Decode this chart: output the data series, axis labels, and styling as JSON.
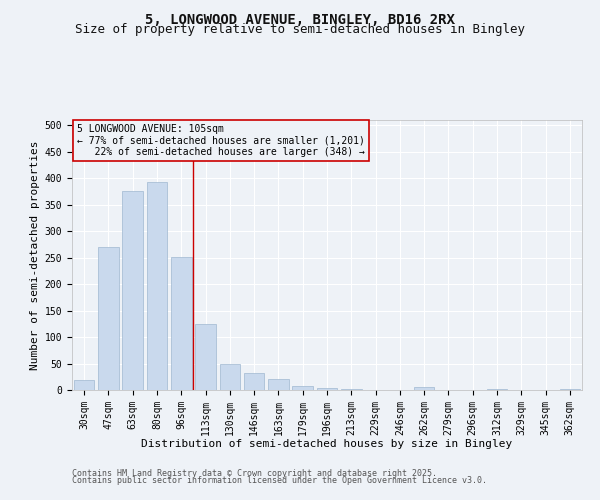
{
  "title_line1": "5, LONGWOOD AVENUE, BINGLEY, BD16 2RX",
  "title_line2": "Size of property relative to semi-detached houses in Bingley",
  "xlabel": "Distribution of semi-detached houses by size in Bingley",
  "ylabel": "Number of semi-detached properties",
  "categories": [
    "30sqm",
    "47sqm",
    "63sqm",
    "80sqm",
    "96sqm",
    "113sqm",
    "130sqm",
    "146sqm",
    "163sqm",
    "179sqm",
    "196sqm",
    "213sqm",
    "229sqm",
    "246sqm",
    "262sqm",
    "279sqm",
    "296sqm",
    "312sqm",
    "329sqm",
    "345sqm",
    "362sqm"
  ],
  "values": [
    18,
    270,
    375,
    393,
    252,
    124,
    50,
    33,
    20,
    7,
    4,
    1,
    0,
    0,
    5,
    0,
    0,
    1,
    0,
    0,
    1
  ],
  "bar_color": "#c9d9ed",
  "bar_edge_color": "#a0b8d0",
  "vline_x_idx": 4.5,
  "vline_color": "#cc0000",
  "annotation_line1": "5 LONGWOOD AVENUE: 105sqm",
  "annotation_line2": "← 77% of semi-detached houses are smaller (1,201)",
  "annotation_line3": "   22% of semi-detached houses are larger (348) →",
  "annotation_box_color": "#cc0000",
  "ylim": [
    0,
    510
  ],
  "yticks": [
    0,
    50,
    100,
    150,
    200,
    250,
    300,
    350,
    400,
    450,
    500
  ],
  "footer_line1": "Contains HM Land Registry data © Crown copyright and database right 2025.",
  "footer_line2": "Contains public sector information licensed under the Open Government Licence v3.0.",
  "background_color": "#eef2f7",
  "grid_color": "#ffffff",
  "title_fontsize": 10,
  "subtitle_fontsize": 9,
  "axis_label_fontsize": 8,
  "tick_fontsize": 7,
  "annot_fontsize": 7,
  "footer_fontsize": 6
}
